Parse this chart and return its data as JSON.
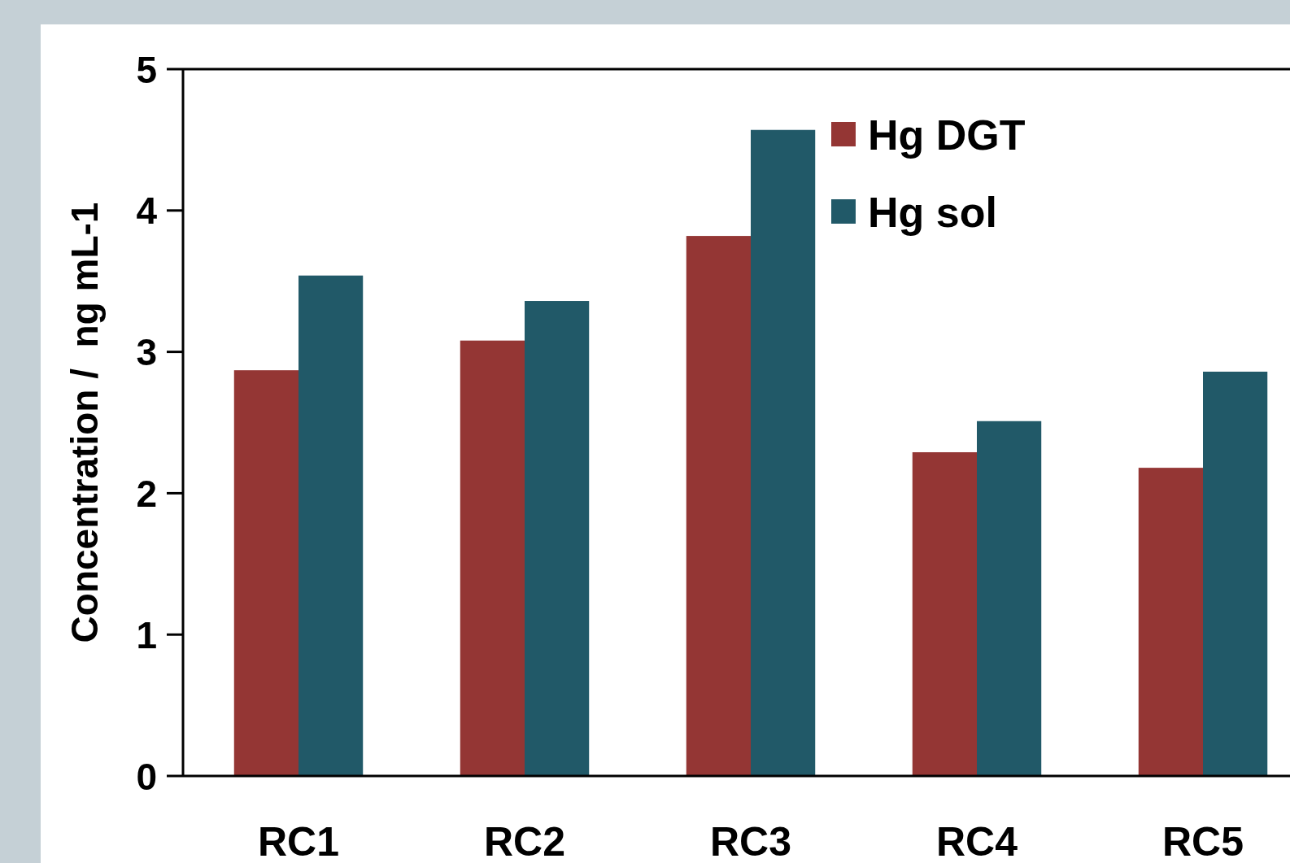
{
  "chart_data": {
    "type": "bar",
    "ylabel": "Concentration /  ng mL-1",
    "categories": [
      "RC1",
      "RC2",
      "RC3",
      "RC4",
      "RC5"
    ],
    "series": [
      {
        "name": "Hg DGT",
        "color": "#943634",
        "values": [
          2.87,
          3.08,
          3.82,
          2.29,
          2.18
        ]
      },
      {
        "name": "Hg sol",
        "color": "#215968",
        "values": [
          3.54,
          3.36,
          4.57,
          2.51,
          2.86
        ]
      }
    ],
    "ylim": [
      0,
      5
    ],
    "yticks": [
      0,
      1,
      2,
      3,
      4,
      5
    ],
    "grid": false,
    "legend": "top right"
  }
}
